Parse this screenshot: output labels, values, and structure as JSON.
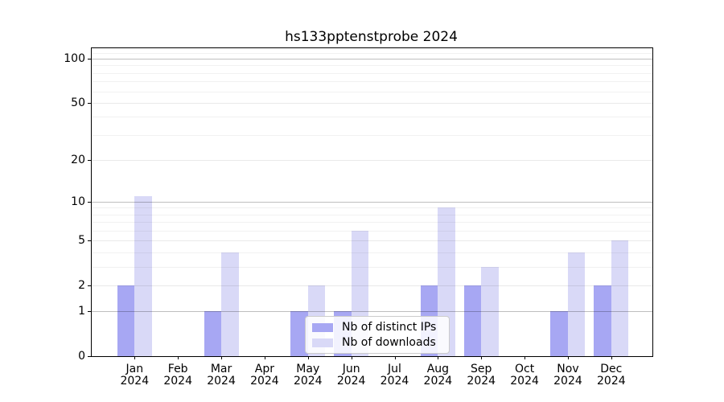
{
  "chart_data": {
    "type": "bar",
    "title": "hs133pptenstprobe 2024",
    "x_tick_months": [
      "Jan",
      "Feb",
      "Mar",
      "Apr",
      "May",
      "Jun",
      "Jul",
      "Aug",
      "Sep",
      "Oct",
      "Nov",
      "Dec"
    ],
    "x_tick_year": "2024",
    "series": [
      {
        "name": "Nb of distinct IPs",
        "color": "#a7a7f3",
        "values": [
          2,
          0,
          1,
          0,
          1,
          1,
          0,
          2,
          2,
          0,
          1,
          2
        ]
      },
      {
        "name": "Nb of downloads",
        "color": "#d9d9f7",
        "values": [
          11,
          0,
          4,
          0,
          2,
          6,
          0,
          9,
          3,
          0,
          4,
          5
        ]
      }
    ],
    "y_axis": {
      "scale": "log1p",
      "top_value": 118,
      "major_ticks": [
        0,
        1,
        2,
        5,
        10,
        20,
        50,
        100
      ],
      "decade_ticks": [
        1,
        10,
        100
      ],
      "minor_ticks": [
        3,
        4,
        6,
        7,
        8,
        9,
        30,
        40,
        60,
        70,
        80,
        90,
        110
      ]
    },
    "legend": {
      "position": "lower center"
    },
    "grid": true
  }
}
